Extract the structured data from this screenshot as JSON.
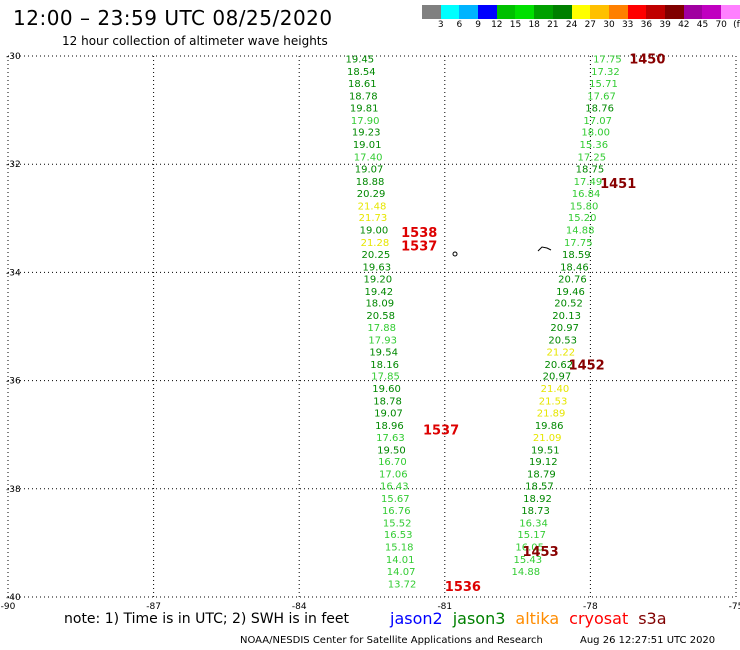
{
  "header": {
    "title": "12:00 – 23:59 UTC 08/25/2020",
    "subtitle": "12 hour collection of altimeter wave heights"
  },
  "legend": {
    "colors": [
      "#808080",
      "#00ffff",
      "#00b4ff",
      "#0000ff",
      "#00c000",
      "#00e000",
      "#00a000",
      "#008000",
      "#ffff00",
      "#ffc000",
      "#ff8000",
      "#ff0000",
      "#c00000",
      "#800000",
      "#a000a0",
      "#c000c0",
      "#ff80ff",
      "#000000"
    ],
    "labels": [
      "3",
      "6",
      "9",
      "12",
      "15",
      "18",
      "21",
      "24",
      "27",
      "30",
      "33",
      "36",
      "39",
      "42",
      "45",
      "70",
      "(ft)"
    ]
  },
  "note": "note: 1) Time is in UTC; 2) SWH is in feet",
  "satellites": [
    {
      "name": "jason2",
      "color": "#0000ff"
    },
    {
      "name": "jason3",
      "color": "#008000"
    },
    {
      "name": "altika",
      "color": "#ff8c00"
    },
    {
      "name": "cryosat",
      "color": "#ff0000"
    },
    {
      "name": "s3a",
      "color": "#800000"
    }
  ],
  "footer": {
    "credit": "NOAA/NESDIS Center for Satellite Applications and Research",
    "timestamp": "Aug 26 12:27:51 UTC 2020"
  },
  "chart_data": {
    "type": "scatter",
    "xlim": [
      -90,
      -75
    ],
    "ylim": [
      -40,
      -30
    ],
    "x_ticks": [
      -90,
      -87,
      -84,
      -81,
      -78,
      -75
    ],
    "y_ticks": [
      -30,
      -32,
      -34,
      -36,
      -38,
      -40
    ],
    "grid": true,
    "palette": {
      "lg": "#33cc33",
      "dg": "#008800",
      "yl": "#e6e600",
      "or": "#ffa500",
      "rd": "#dd0000",
      "dr": "#880000"
    },
    "tracks": [
      {
        "name": "west track",
        "points": [
          {
            "x": -82.75,
            "y": -30.05,
            "v": "19.45",
            "c": "dg"
          },
          {
            "x": -82.72,
            "y": -30.28,
            "v": "18.54",
            "c": "dg"
          },
          {
            "x": -82.7,
            "y": -30.5,
            "v": "18.61",
            "c": "dg"
          },
          {
            "x": -82.68,
            "y": -30.73,
            "v": "18.78",
            "c": "dg"
          },
          {
            "x": -82.66,
            "y": -30.95,
            "v": "19.81",
            "c": "dg"
          },
          {
            "x": -82.64,
            "y": -31.18,
            "v": "17.90",
            "c": "lg"
          },
          {
            "x": -82.62,
            "y": -31.4,
            "v": "19.23",
            "c": "dg"
          },
          {
            "x": -82.6,
            "y": -31.63,
            "v": "19.01",
            "c": "dg"
          },
          {
            "x": -82.58,
            "y": -31.86,
            "v": "17.40",
            "c": "lg"
          },
          {
            "x": -82.56,
            "y": -32.08,
            "v": "19.07",
            "c": "dg"
          },
          {
            "x": -82.54,
            "y": -32.31,
            "v": "18.88",
            "c": "dg"
          },
          {
            "x": -82.52,
            "y": -32.53,
            "v": "20.29",
            "c": "dg"
          },
          {
            "x": -82.5,
            "y": -32.76,
            "v": "21.48",
            "c": "yl"
          },
          {
            "x": -82.48,
            "y": -32.98,
            "v": "21.73",
            "c": "yl"
          },
          {
            "x": -82.46,
            "y": -33.21,
            "v": "19.00",
            "c": "dg"
          },
          {
            "x": -82.44,
            "y": -33.44,
            "v": "21.28",
            "c": "yl"
          },
          {
            "x": -82.42,
            "y": -33.66,
            "v": "20.25",
            "c": "dg"
          },
          {
            "x": -82.4,
            "y": -33.89,
            "v": "19.63",
            "c": "dg"
          },
          {
            "x": -82.38,
            "y": -34.11,
            "v": "19.20",
            "c": "dg"
          },
          {
            "x": -82.36,
            "y": -34.34,
            "v": "19.42",
            "c": "dg"
          },
          {
            "x": -82.34,
            "y": -34.56,
            "v": "18.09",
            "c": "dg"
          },
          {
            "x": -82.32,
            "y": -34.79,
            "v": "20.58",
            "c": "dg"
          },
          {
            "x": -82.3,
            "y": -35.01,
            "v": "17.88",
            "c": "lg"
          },
          {
            "x": -82.28,
            "y": -35.24,
            "v": "17.93",
            "c": "lg"
          },
          {
            "x": -82.26,
            "y": -35.46,
            "v": "19.54",
            "c": "dg"
          },
          {
            "x": -82.24,
            "y": -35.69,
            "v": "18.16",
            "c": "dg"
          },
          {
            "x": -82.22,
            "y": -35.91,
            "v": "17.85",
            "c": "lg"
          },
          {
            "x": -82.2,
            "y": -36.14,
            "v": "19.60",
            "c": "dg"
          },
          {
            "x": -82.18,
            "y": -36.37,
            "v": "18.78",
            "c": "dg"
          },
          {
            "x": -82.16,
            "y": -36.59,
            "v": "19.07",
            "c": "dg"
          },
          {
            "x": -82.14,
            "y": -36.82,
            "v": "18.96",
            "c": "dg"
          },
          {
            "x": -82.12,
            "y": -37.04,
            "v": "17.63",
            "c": "lg"
          },
          {
            "x": -82.1,
            "y": -37.27,
            "v": "19.50",
            "c": "dg"
          },
          {
            "x": -82.08,
            "y": -37.49,
            "v": "16.70",
            "c": "lg"
          },
          {
            "x": -82.06,
            "y": -37.72,
            "v": "17.06",
            "c": "lg"
          },
          {
            "x": -82.04,
            "y": -37.94,
            "v": "16.43",
            "c": "lg"
          },
          {
            "x": -82.02,
            "y": -38.17,
            "v": "15.67",
            "c": "lg"
          },
          {
            "x": -82.0,
            "y": -38.39,
            "v": "16.76",
            "c": "lg"
          },
          {
            "x": -81.98,
            "y": -38.62,
            "v": "15.52",
            "c": "lg"
          },
          {
            "x": -81.96,
            "y": -38.84,
            "v": "16.53",
            "c": "lg"
          },
          {
            "x": -81.94,
            "y": -39.07,
            "v": "15.18",
            "c": "lg"
          },
          {
            "x": -81.92,
            "y": -39.3,
            "v": "14.01",
            "c": "lg"
          },
          {
            "x": -81.9,
            "y": -39.52,
            "v": "14.07",
            "c": "lg"
          },
          {
            "x": -81.88,
            "y": -39.75,
            "v": "13.72",
            "c": "lg"
          }
        ]
      },
      {
        "name": "east track",
        "points": [
          {
            "x": -77.65,
            "y": -30.05,
            "v": "17.75",
            "c": "lg"
          },
          {
            "x": -77.69,
            "y": -30.28,
            "v": "17.32",
            "c": "lg"
          },
          {
            "x": -77.73,
            "y": -30.5,
            "v": "15.71",
            "c": "lg"
          },
          {
            "x": -77.77,
            "y": -30.73,
            "v": "17.67",
            "c": "lg"
          },
          {
            "x": -77.81,
            "y": -30.95,
            "v": "18.76",
            "c": "dg"
          },
          {
            "x": -77.85,
            "y": -31.18,
            "v": "17.07",
            "c": "lg"
          },
          {
            "x": -77.89,
            "y": -31.4,
            "v": "18.00",
            "c": "lg"
          },
          {
            "x": -77.93,
            "y": -31.63,
            "v": "15.36",
            "c": "lg"
          },
          {
            "x": -77.97,
            "y": -31.86,
            "v": "17.25",
            "c": "lg"
          },
          {
            "x": -78.01,
            "y": -32.08,
            "v": "18.75",
            "c": "dg"
          },
          {
            "x": -78.05,
            "y": -32.31,
            "v": "17.49",
            "c": "lg"
          },
          {
            "x": -78.09,
            "y": -32.53,
            "v": "16.84",
            "c": "lg"
          },
          {
            "x": -78.13,
            "y": -32.76,
            "v": "15.80",
            "c": "lg"
          },
          {
            "x": -78.17,
            "y": -32.98,
            "v": "15.20",
            "c": "lg"
          },
          {
            "x": -78.21,
            "y": -33.21,
            "v": "14.88",
            "c": "lg"
          },
          {
            "x": -78.25,
            "y": -33.44,
            "v": "17.75",
            "c": "lg"
          },
          {
            "x": -78.29,
            "y": -33.66,
            "v": "18.59",
            "c": "dg"
          },
          {
            "x": -78.33,
            "y": -33.89,
            "v": "18.46",
            "c": "dg"
          },
          {
            "x": -78.37,
            "y": -34.11,
            "v": "20.76",
            "c": "dg"
          },
          {
            "x": -78.41,
            "y": -34.34,
            "v": "19.46",
            "c": "dg"
          },
          {
            "x": -78.45,
            "y": -34.56,
            "v": "20.52",
            "c": "dg"
          },
          {
            "x": -78.49,
            "y": -34.79,
            "v": "20.13",
            "c": "dg"
          },
          {
            "x": -78.53,
            "y": -35.01,
            "v": "20.97",
            "c": "dg"
          },
          {
            "x": -78.57,
            "y": -35.24,
            "v": "20.53",
            "c": "dg"
          },
          {
            "x": -78.61,
            "y": -35.46,
            "v": "21.22",
            "c": "yl"
          },
          {
            "x": -78.65,
            "y": -35.69,
            "v": "20.62",
            "c": "dg"
          },
          {
            "x": -78.69,
            "y": -35.91,
            "v": "20.97",
            "c": "dg"
          },
          {
            "x": -78.73,
            "y": -36.14,
            "v": "21.40",
            "c": "yl"
          },
          {
            "x": -78.77,
            "y": -36.37,
            "v": "21.53",
            "c": "yl"
          },
          {
            "x": -78.81,
            "y": -36.59,
            "v": "21.89",
            "c": "yl"
          },
          {
            "x": -78.85,
            "y": -36.82,
            "v": "19.86",
            "c": "dg"
          },
          {
            "x": -78.89,
            "y": -37.04,
            "v": "21.09",
            "c": "yl"
          },
          {
            "x": -78.93,
            "y": -37.27,
            "v": "19.51",
            "c": "dg"
          },
          {
            "x": -78.97,
            "y": -37.49,
            "v": "19.12",
            "c": "dg"
          },
          {
            "x": -79.01,
            "y": -37.72,
            "v": "18.79",
            "c": "dg"
          },
          {
            "x": -79.05,
            "y": -37.94,
            "v": "18.57",
            "c": "dg"
          },
          {
            "x": -79.09,
            "y": -38.17,
            "v": "18.92",
            "c": "dg"
          },
          {
            "x": -79.13,
            "y": -38.39,
            "v": "18.73",
            "c": "dg"
          },
          {
            "x": -79.17,
            "y": -38.62,
            "v": "16.34",
            "c": "lg"
          },
          {
            "x": -79.21,
            "y": -38.84,
            "v": "15.17",
            "c": "lg"
          },
          {
            "x": -79.25,
            "y": -39.07,
            "v": "16.05",
            "c": "lg"
          },
          {
            "x": -79.29,
            "y": -39.3,
            "v": "15.43",
            "c": "lg"
          },
          {
            "x": -79.33,
            "y": -39.52,
            "v": "14.88",
            "c": "lg"
          }
        ]
      }
    ],
    "time_labels": [
      {
        "x": -77.2,
        "y": -30.05,
        "t": "1450",
        "c": "dr"
      },
      {
        "x": -77.8,
        "y": -32.35,
        "t": "1451",
        "c": "dr"
      },
      {
        "x": -81.9,
        "y": -33.25,
        "t": "1538",
        "c": "rd"
      },
      {
        "x": -81.9,
        "y": -33.5,
        "t": "1537",
        "c": "rd"
      },
      {
        "x": -78.45,
        "y": -35.7,
        "t": "1452",
        "c": "dr"
      },
      {
        "x": -81.45,
        "y": -36.9,
        "t": "1537",
        "c": "rd"
      },
      {
        "x": -79.4,
        "y": -39.15,
        "t": "1453",
        "c": "dr"
      },
      {
        "x": -81.0,
        "y": -39.8,
        "t": "1536",
        "c": "rd"
      }
    ]
  }
}
